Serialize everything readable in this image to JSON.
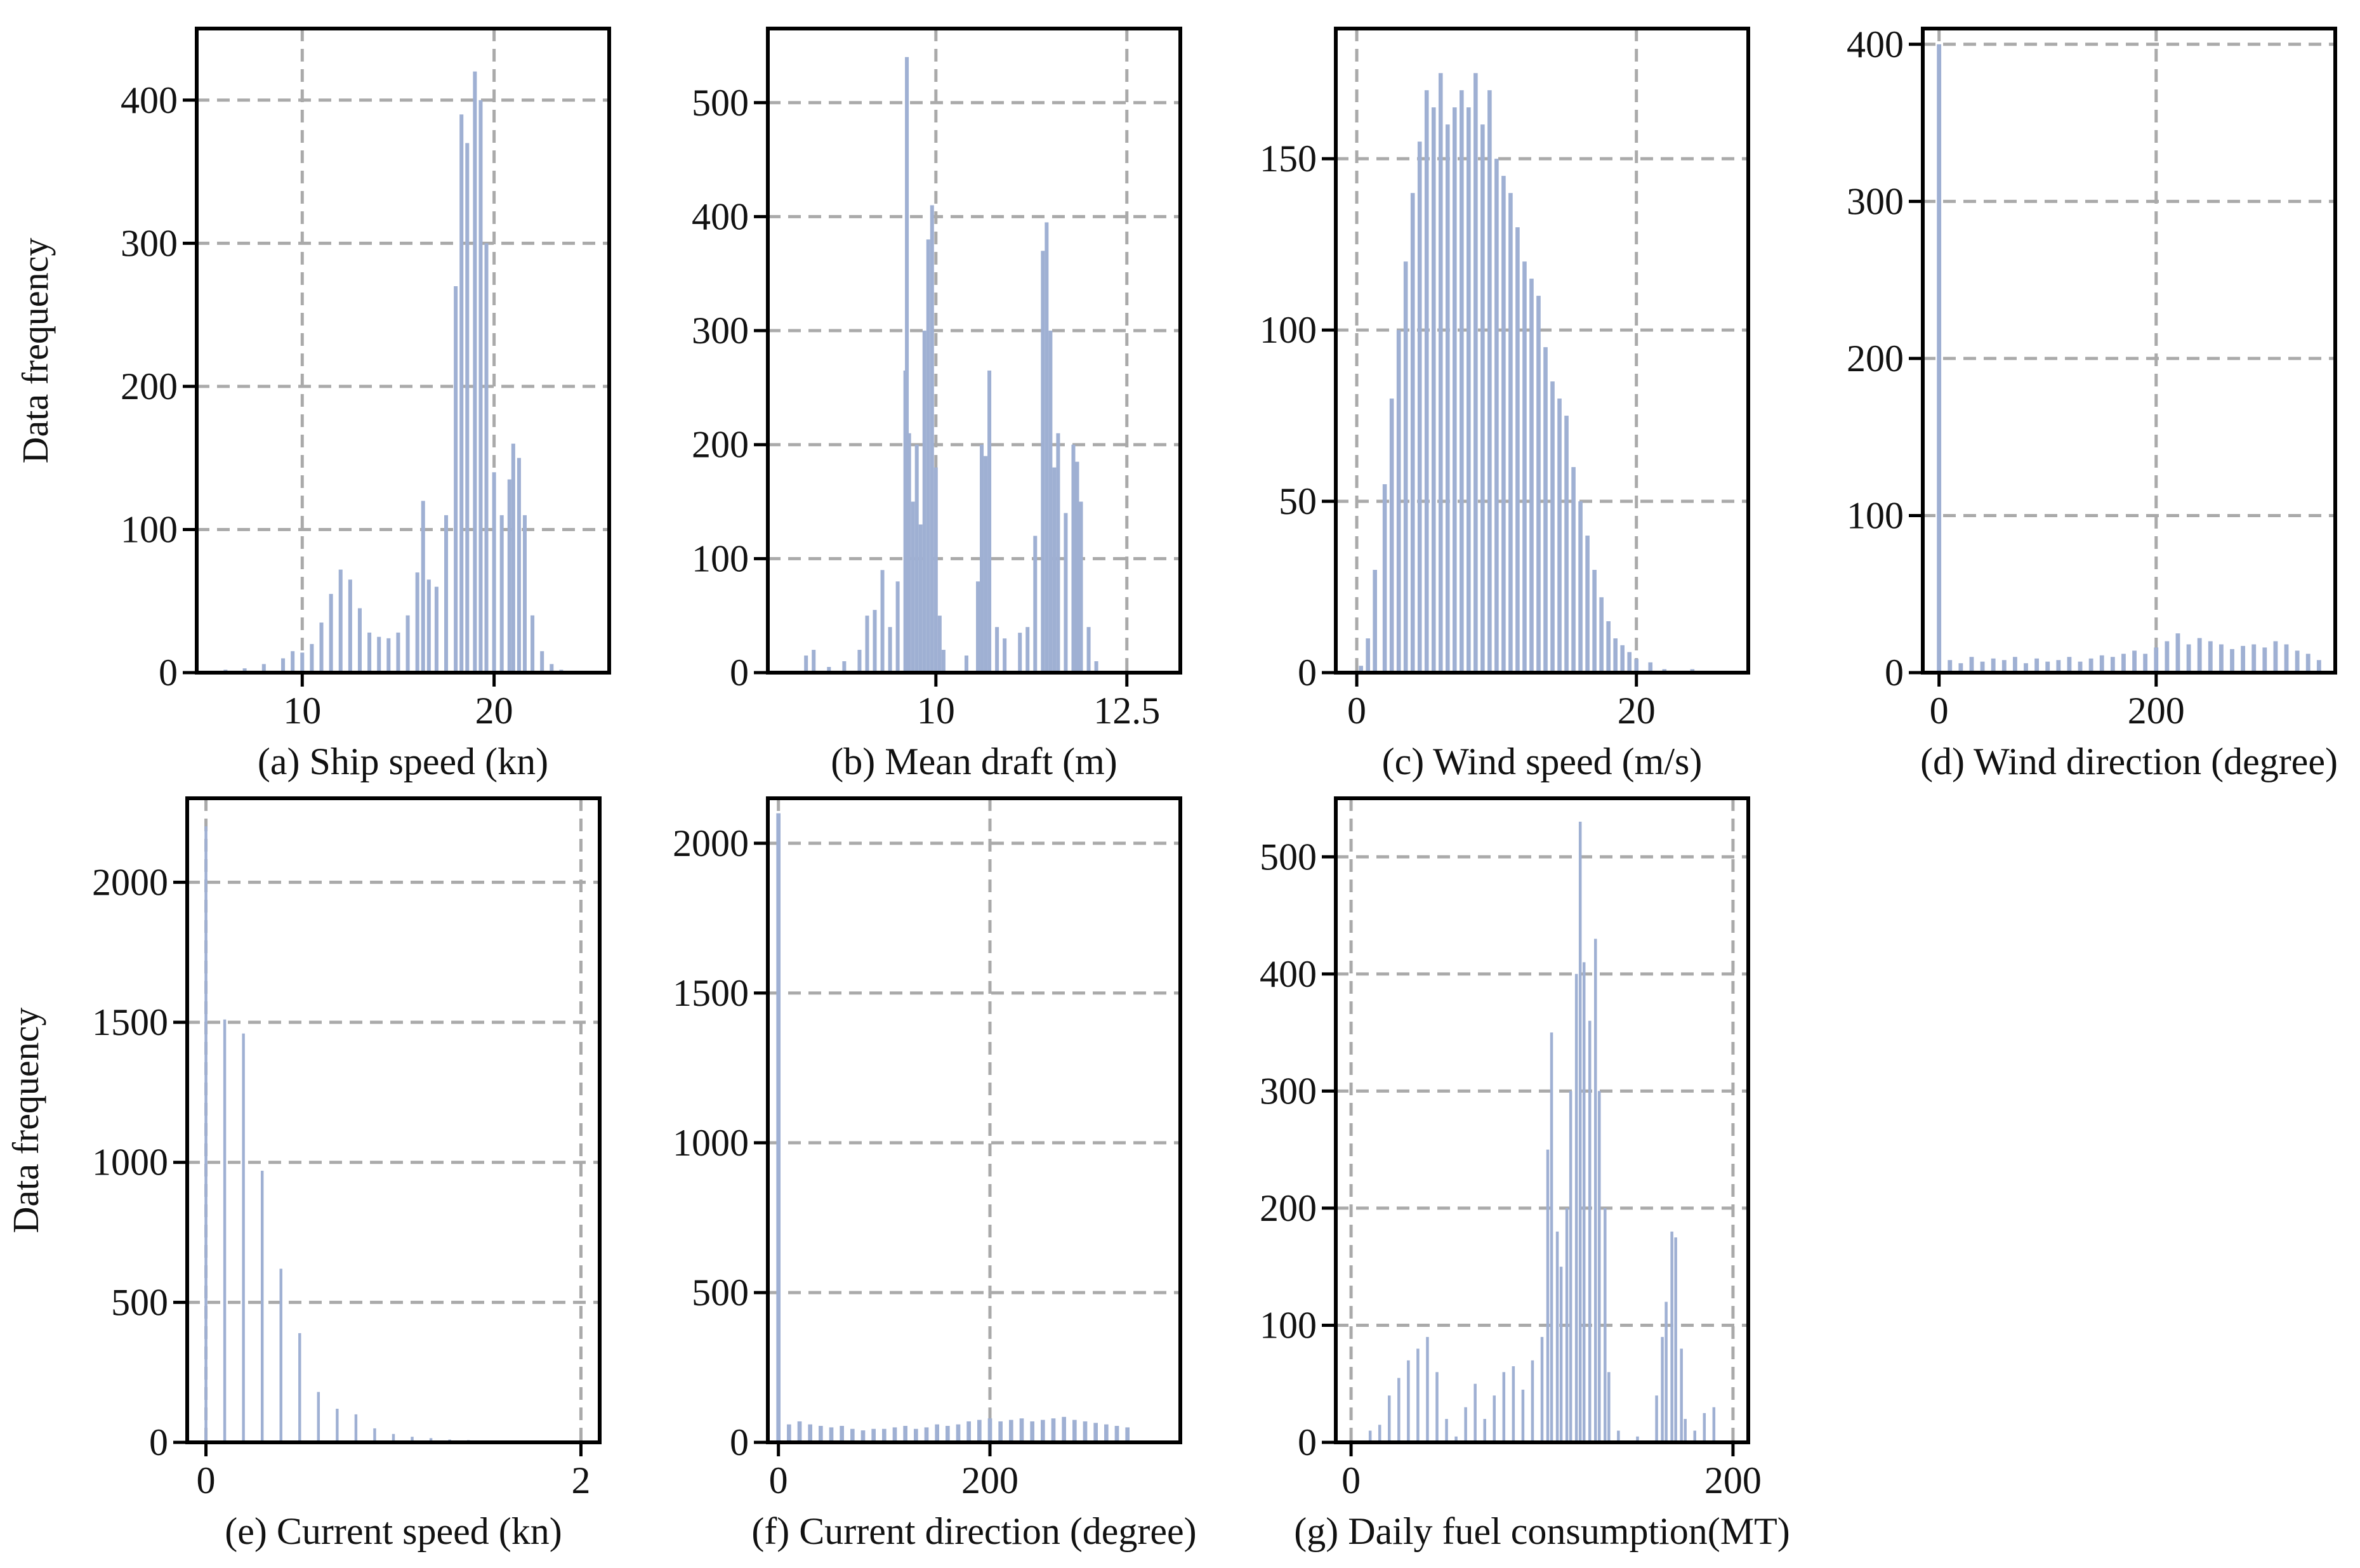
{
  "style": {
    "bar_color": "#9fb0d3",
    "grid_color": "#aaaaaa",
    "axis_color": "#000000"
  },
  "chart_data": [
    {
      "type": "bar",
      "id": "a",
      "xlabel": "(a) Ship speed (kn)",
      "ylabel": "Data frequency",
      "xlim": [
        4.5,
        26
      ],
      "ylim": [
        0,
        450
      ],
      "xticks": [
        10,
        20
      ],
      "yticks": [
        0,
        100,
        200,
        300,
        400
      ],
      "grid": true,
      "bin_width": 0.2,
      "bins": [
        [
          6,
          2
        ],
        [
          7,
          3
        ],
        [
          8,
          6
        ],
        [
          9,
          10
        ],
        [
          9.5,
          15
        ],
        [
          10,
          14
        ],
        [
          10.5,
          20
        ],
        [
          11,
          35
        ],
        [
          11.5,
          55
        ],
        [
          12,
          72
        ],
        [
          12.5,
          65
        ],
        [
          13,
          45
        ],
        [
          13.5,
          28
        ],
        [
          14,
          25
        ],
        [
          14.5,
          24
        ],
        [
          15,
          28
        ],
        [
          15.5,
          40
        ],
        [
          16,
          70
        ],
        [
          16.3,
          120
        ],
        [
          16.6,
          65
        ],
        [
          17,
          60
        ],
        [
          17.5,
          110
        ],
        [
          18,
          270
        ],
        [
          18.3,
          390
        ],
        [
          18.6,
          370
        ],
        [
          19,
          420
        ],
        [
          19.3,
          400
        ],
        [
          19.6,
          300
        ],
        [
          20,
          140
        ],
        [
          20.4,
          110
        ],
        [
          20.8,
          135
        ],
        [
          21,
          160
        ],
        [
          21.3,
          150
        ],
        [
          21.6,
          110
        ],
        [
          22,
          40
        ],
        [
          22.5,
          15
        ],
        [
          23,
          6
        ],
        [
          23.5,
          2
        ]
      ]
    },
    {
      "type": "bar",
      "id": "b",
      "xlabel": "(b) Mean draft (m)",
      "ylabel": "",
      "xlim": [
        7.8,
        13.2
      ],
      "ylim": [
        0,
        565
      ],
      "xticks": [
        10.0,
        12.5
      ],
      "yticks": [
        0,
        100,
        200,
        300,
        400,
        500
      ],
      "grid": true,
      "bin_width": 0.05,
      "bins": [
        [
          8.3,
          15
        ],
        [
          8.4,
          20
        ],
        [
          8.6,
          5
        ],
        [
          8.8,
          10
        ],
        [
          9.0,
          20
        ],
        [
          9.1,
          50
        ],
        [
          9.2,
          55
        ],
        [
          9.3,
          90
        ],
        [
          9.4,
          40
        ],
        [
          9.5,
          80
        ],
        [
          9.6,
          265
        ],
        [
          9.62,
          540
        ],
        [
          9.65,
          210
        ],
        [
          9.7,
          150
        ],
        [
          9.75,
          200
        ],
        [
          9.8,
          130
        ],
        [
          9.85,
          300
        ],
        [
          9.9,
          380
        ],
        [
          9.95,
          410
        ],
        [
          10.0,
          180
        ],
        [
          10.05,
          50
        ],
        [
          10.1,
          20
        ],
        [
          10.4,
          15
        ],
        [
          10.55,
          80
        ],
        [
          10.6,
          200
        ],
        [
          10.65,
          190
        ],
        [
          10.7,
          265
        ],
        [
          10.8,
          40
        ],
        [
          10.9,
          30
        ],
        [
          11.1,
          35
        ],
        [
          11.2,
          40
        ],
        [
          11.3,
          120
        ],
        [
          11.4,
          370
        ],
        [
          11.45,
          395
        ],
        [
          11.5,
          300
        ],
        [
          11.55,
          180
        ],
        [
          11.6,
          210
        ],
        [
          11.7,
          140
        ],
        [
          11.8,
          200
        ],
        [
          11.85,
          185
        ],
        [
          11.9,
          150
        ],
        [
          12.0,
          40
        ],
        [
          12.1,
          10
        ]
      ]
    },
    {
      "type": "bar",
      "id": "c",
      "xlabel": "(c) Wind speed (m/s)",
      "ylabel": "",
      "xlim": [
        -1.5,
        28
      ],
      "ylim": [
        0,
        188
      ],
      "xticks": [
        0,
        20
      ],
      "yticks": [
        0,
        50,
        100,
        150
      ],
      "grid": true,
      "bin_width": 0.3,
      "bins": [
        [
          0.3,
          2
        ],
        [
          0.8,
          10
        ],
        [
          1.3,
          30
        ],
        [
          2,
          55
        ],
        [
          2.5,
          80
        ],
        [
          3,
          100
        ],
        [
          3.5,
          120
        ],
        [
          4,
          140
        ],
        [
          4.5,
          155
        ],
        [
          5,
          170
        ],
        [
          5.5,
          165
        ],
        [
          6,
          175
        ],
        [
          6.5,
          160
        ],
        [
          7,
          165
        ],
        [
          7.5,
          170
        ],
        [
          8,
          165
        ],
        [
          8.5,
          175
        ],
        [
          9,
          160
        ],
        [
          9.5,
          170
        ],
        [
          10,
          150
        ],
        [
          10.5,
          145
        ],
        [
          11,
          140
        ],
        [
          11.5,
          130
        ],
        [
          12,
          120
        ],
        [
          12.5,
          115
        ],
        [
          13,
          110
        ],
        [
          13.5,
          95
        ],
        [
          14,
          85
        ],
        [
          14.5,
          80
        ],
        [
          15,
          75
        ],
        [
          15.5,
          60
        ],
        [
          16,
          50
        ],
        [
          16.5,
          40
        ],
        [
          17,
          30
        ],
        [
          17.5,
          22
        ],
        [
          18,
          15
        ],
        [
          18.5,
          10
        ],
        [
          19,
          8
        ],
        [
          19.5,
          6
        ],
        [
          20,
          4
        ],
        [
          21,
          3
        ],
        [
          22,
          1
        ],
        [
          24,
          1
        ]
      ]
    },
    {
      "type": "bar",
      "id": "d",
      "xlabel": "(d) Wind direction (degree)",
      "ylabel": "",
      "xlim": [
        -15,
        365
      ],
      "ylim": [
        0,
        410
      ],
      "xticks": [
        0,
        200
      ],
      "yticks": [
        0,
        100,
        200,
        300,
        400
      ],
      "grid": true,
      "bin_width": 4,
      "bins": [
        [
          0,
          400
        ],
        [
          10,
          8
        ],
        [
          20,
          6
        ],
        [
          30,
          10
        ],
        [
          40,
          7
        ],
        [
          50,
          9
        ],
        [
          60,
          8
        ],
        [
          70,
          10
        ],
        [
          80,
          6
        ],
        [
          90,
          9
        ],
        [
          100,
          7
        ],
        [
          110,
          8
        ],
        [
          120,
          10
        ],
        [
          130,
          7
        ],
        [
          140,
          9
        ],
        [
          150,
          11
        ],
        [
          160,
          10
        ],
        [
          170,
          12
        ],
        [
          180,
          14
        ],
        [
          190,
          12
        ],
        [
          200,
          16
        ],
        [
          210,
          20
        ],
        [
          220,
          25
        ],
        [
          230,
          18
        ],
        [
          240,
          22
        ],
        [
          250,
          20
        ],
        [
          260,
          18
        ],
        [
          270,
          15
        ],
        [
          280,
          17
        ],
        [
          290,
          18
        ],
        [
          300,
          16
        ],
        [
          310,
          20
        ],
        [
          320,
          18
        ],
        [
          330,
          14
        ],
        [
          340,
          12
        ],
        [
          350,
          8
        ]
      ]
    },
    {
      "type": "bar",
      "id": "e",
      "xlabel": "(e) Current speed (kn)",
      "ylabel": "Data frequency",
      "xlim": [
        -0.1,
        2.1
      ],
      "ylim": [
        0,
        2300
      ],
      "xticks": [
        0,
        2
      ],
      "yticks": [
        0,
        500,
        1000,
        1500,
        2000
      ],
      "grid": true,
      "bin_width": 0.015,
      "bins": [
        [
          0,
          2200
        ],
        [
          0.1,
          1510
        ],
        [
          0.2,
          1460
        ],
        [
          0.3,
          970
        ],
        [
          0.4,
          620
        ],
        [
          0.5,
          390
        ],
        [
          0.6,
          180
        ],
        [
          0.7,
          120
        ],
        [
          0.8,
          100
        ],
        [
          0.9,
          50
        ],
        [
          1.0,
          30
        ],
        [
          1.1,
          20
        ],
        [
          1.2,
          15
        ],
        [
          1.3,
          10
        ],
        [
          1.4,
          8
        ],
        [
          1.5,
          5
        ],
        [
          1.6,
          4
        ]
      ]
    },
    {
      "type": "bar",
      "id": "f",
      "xlabel": "(f) Current direction  (degree)",
      "ylabel": "",
      "xlim": [
        -10,
        380
      ],
      "ylim": [
        0,
        2150
      ],
      "xticks": [
        0,
        200
      ],
      "yticks": [
        0,
        500,
        1000,
        1500,
        2000
      ],
      "grid": true,
      "bin_width": 4,
      "bins": [
        [
          0,
          2100
        ],
        [
          10,
          60
        ],
        [
          20,
          70
        ],
        [
          30,
          60
        ],
        [
          40,
          55
        ],
        [
          50,
          50
        ],
        [
          60,
          55
        ],
        [
          70,
          45
        ],
        [
          80,
          40
        ],
        [
          90,
          45
        ],
        [
          100,
          45
        ],
        [
          110,
          50
        ],
        [
          120,
          55
        ],
        [
          130,
          45
        ],
        [
          140,
          50
        ],
        [
          150,
          60
        ],
        [
          160,
          55
        ],
        [
          170,
          60
        ],
        [
          180,
          70
        ],
        [
          190,
          75
        ],
        [
          200,
          80
        ],
        [
          210,
          70
        ],
        [
          220,
          75
        ],
        [
          230,
          80
        ],
        [
          240,
          70
        ],
        [
          250,
          75
        ],
        [
          260,
          80
        ],
        [
          270,
          85
        ],
        [
          280,
          75
        ],
        [
          290,
          70
        ],
        [
          300,
          65
        ],
        [
          310,
          60
        ],
        [
          320,
          55
        ],
        [
          330,
          50
        ]
      ]
    },
    {
      "type": "bar",
      "id": "g",
      "xlabel": "(g) Daily fuel consumption(MT)",
      "ylabel": "",
      "xlim": [
        -8,
        208
      ],
      "ylim": [
        0,
        550
      ],
      "xticks": [
        0,
        200
      ],
      "yticks": [
        0,
        100,
        200,
        300,
        400,
        500
      ],
      "grid": true,
      "bin_width": 1.5,
      "bins": [
        [
          10,
          10
        ],
        [
          15,
          15
        ],
        [
          20,
          40
        ],
        [
          25,
          55
        ],
        [
          30,
          70
        ],
        [
          35,
          80
        ],
        [
          40,
          90
        ],
        [
          45,
          60
        ],
        [
          50,
          20
        ],
        [
          55,
          5
        ],
        [
          60,
          30
        ],
        [
          65,
          50
        ],
        [
          70,
          20
        ],
        [
          75,
          40
        ],
        [
          80,
          60
        ],
        [
          85,
          65
        ],
        [
          90,
          45
        ],
        [
          95,
          70
        ],
        [
          100,
          90
        ],
        [
          103,
          250
        ],
        [
          105,
          350
        ],
        [
          108,
          180
        ],
        [
          110,
          150
        ],
        [
          113,
          200
        ],
        [
          115,
          300
        ],
        [
          118,
          400
        ],
        [
          120,
          530
        ],
        [
          122,
          410
        ],
        [
          125,
          360
        ],
        [
          128,
          430
        ],
        [
          130,
          300
        ],
        [
          133,
          200
        ],
        [
          135,
          60
        ],
        [
          140,
          10
        ],
        [
          150,
          5
        ],
        [
          160,
          40
        ],
        [
          163,
          90
        ],
        [
          165,
          120
        ],
        [
          168,
          180
        ],
        [
          170,
          175
        ],
        [
          173,
          80
        ],
        [
          175,
          20
        ],
        [
          180,
          10
        ],
        [
          185,
          25
        ],
        [
          190,
          30
        ]
      ]
    }
  ]
}
